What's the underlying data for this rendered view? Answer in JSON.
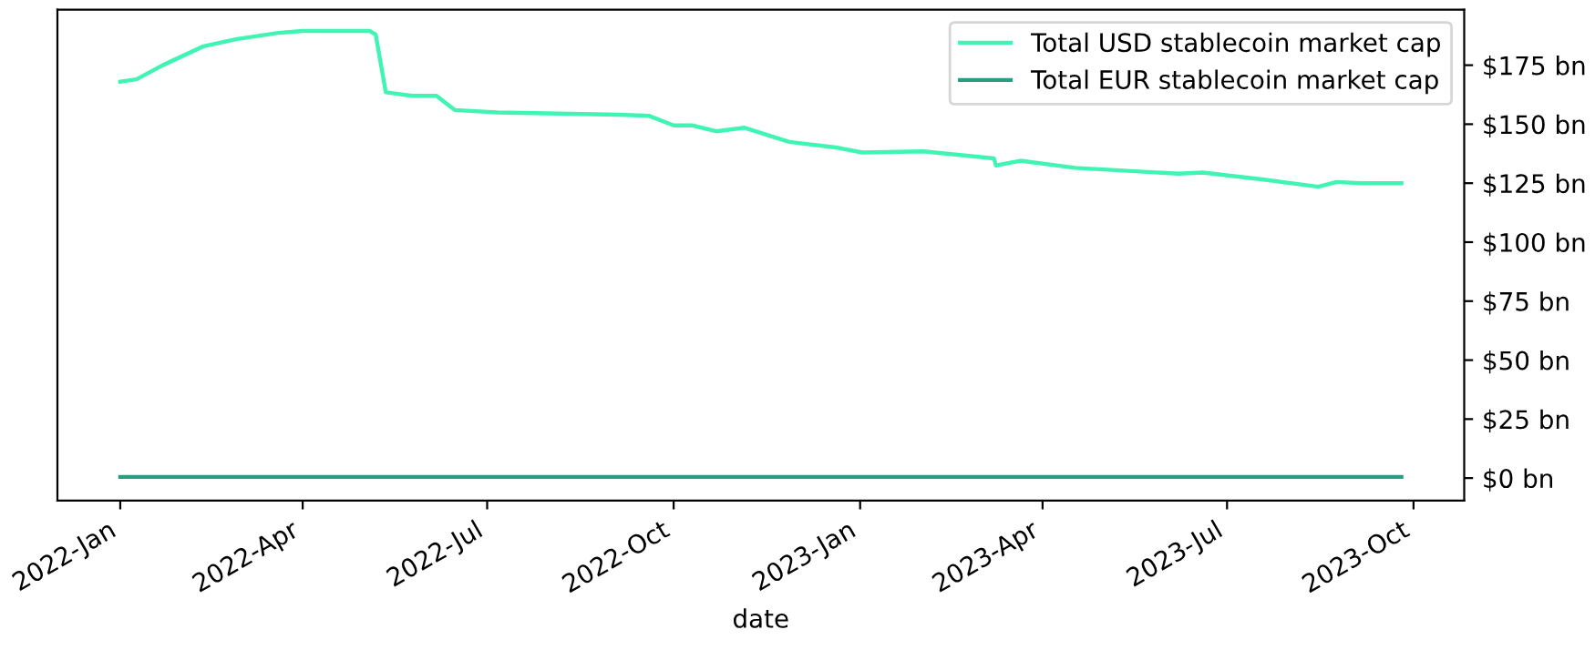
{
  "chart_data": {
    "type": "line",
    "xlabel": "date",
    "legend": "top right",
    "grid": false,
    "marker": "none",
    "line_style": "solid",
    "xlim": [
      "2021-12-01",
      "2023-10-26"
    ],
    "xticks": [
      {
        "value": "2022-01-01",
        "label": "2022-Jan"
      },
      {
        "value": "2022-04-01",
        "label": "2022-Apr"
      },
      {
        "value": "2022-07-01",
        "label": "2022-Jul"
      },
      {
        "value": "2022-10-01",
        "label": "2022-Oct"
      },
      {
        "value": "2023-01-01",
        "label": "2023-Jan"
      },
      {
        "value": "2023-04-01",
        "label": "2023-Apr"
      },
      {
        "value": "2023-07-01",
        "label": "2023-Jul"
      },
      {
        "value": "2023-10-01",
        "label": "2023-Oct"
      }
    ],
    "ylim": [
      -9.5,
      198.5
    ],
    "yticks": [
      {
        "value": 0,
        "label": "$0 bn"
      },
      {
        "value": 25,
        "label": "$25 bn"
      },
      {
        "value": 50,
        "label": "$50 bn"
      },
      {
        "value": 75,
        "label": "$75 bn"
      },
      {
        "value": 100,
        "label": "$100 bn"
      },
      {
        "value": 125,
        "label": "$125 bn"
      },
      {
        "value": 150,
        "label": "$150 bn"
      },
      {
        "value": 175,
        "label": "$175 bn"
      }
    ],
    "series": [
      {
        "name": "Total USD stablecoin market cap",
        "color": "#40f5b4",
        "x": [
          "2022-01-01",
          "2022-01-09",
          "2022-01-22",
          "2022-02-11",
          "2022-02-27",
          "2022-03-20",
          "2022-04-01",
          "2022-05-04",
          "2022-05-07",
          "2022-05-12",
          "2022-05-25",
          "2022-06-06",
          "2022-06-15",
          "2022-07-06",
          "2022-08-05",
          "2022-09-04",
          "2022-09-19",
          "2022-10-01",
          "2022-10-10",
          "2022-10-22",
          "2022-11-05",
          "2022-11-27",
          "2022-12-21",
          "2023-01-02",
          "2023-02-01",
          "2023-03-08",
          "2023-03-09",
          "2023-03-21",
          "2023-04-17",
          "2023-06-07",
          "2023-06-19",
          "2023-07-19",
          "2023-08-15",
          "2023-08-24",
          "2023-09-05",
          "2023-09-25"
        ],
        "values": [
          168,
          169,
          175,
          183,
          186,
          188.7,
          189.5,
          189.5,
          188,
          163.5,
          162,
          162,
          156,
          155,
          154.5,
          154,
          153.5,
          149.5,
          149.5,
          147,
          148.5,
          142.5,
          140,
          138,
          138.5,
          135.5,
          132.5,
          134.5,
          131.5,
          129,
          129.5,
          126.5,
          123.5,
          125.5,
          125,
          125
        ]
      },
      {
        "name": "Total EUR stablecoin market cap",
        "color": "#2a9d80",
        "x": [
          "2022-01-01",
          "2023-09-25"
        ],
        "values": [
          0.5,
          0.5
        ]
      }
    ]
  }
}
